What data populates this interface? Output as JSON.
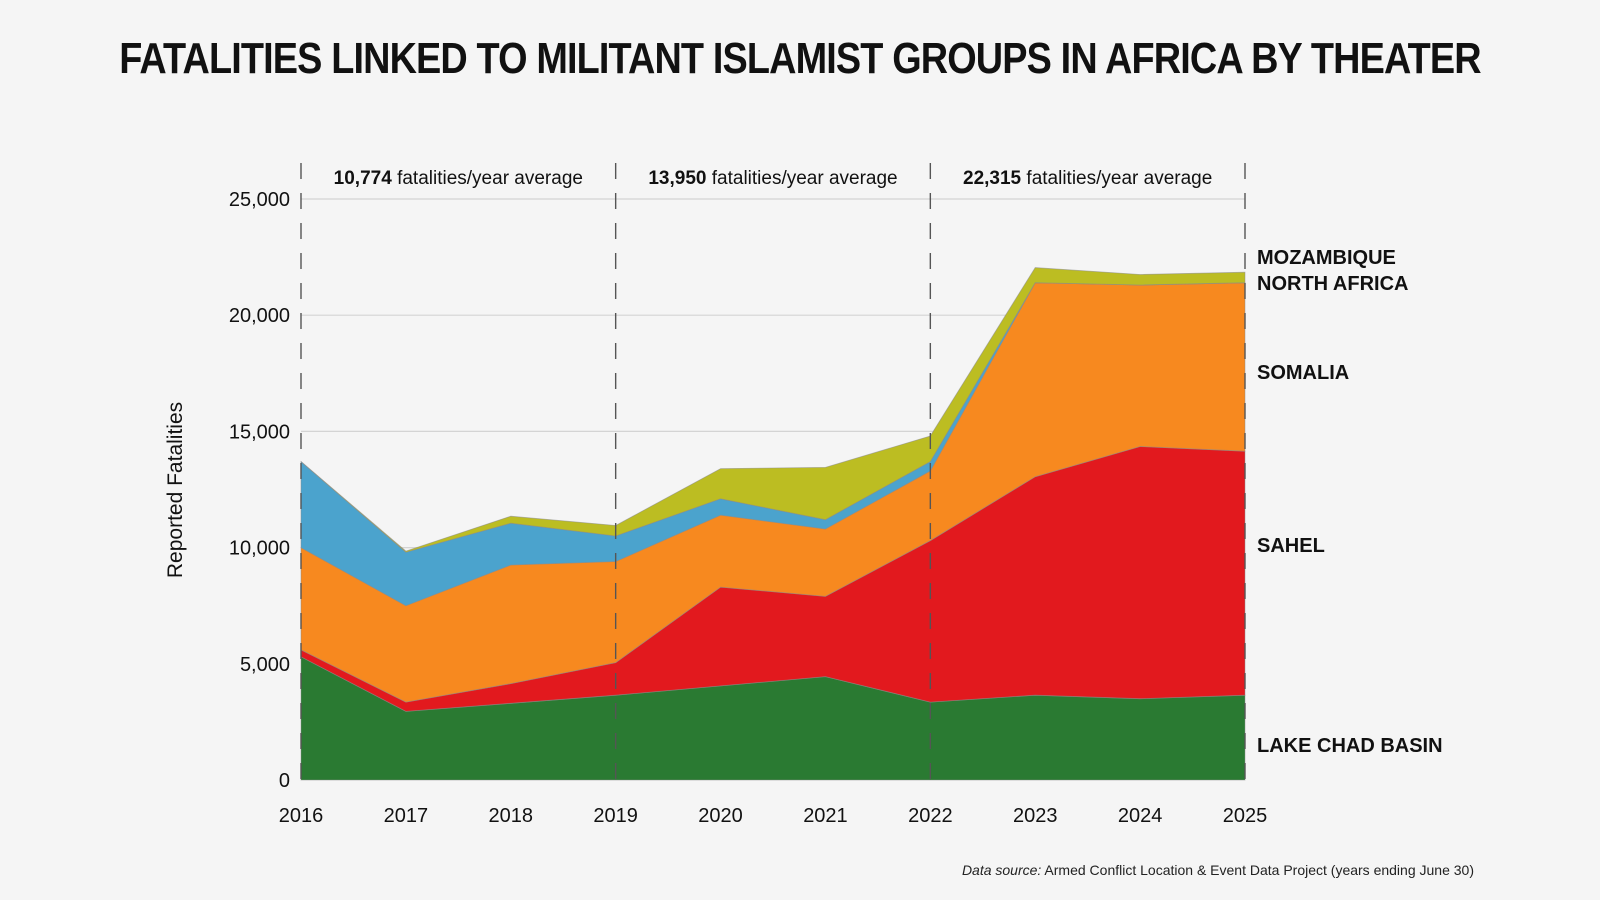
{
  "chart_data": {
    "type": "area",
    "title": "FATALITIES LINKED TO MILITANT ISLAMIST GROUPS IN AFRICA BY THEATER",
    "xlabel": "",
    "ylabel": "Reported Fatalities",
    "x": [
      "2016",
      "2017",
      "2018",
      "2019",
      "2020",
      "2021",
      "2022",
      "2023",
      "2024",
      "2025"
    ],
    "ylim": [
      0,
      25000
    ],
    "yticks": [
      0,
      5000,
      10000,
      15000,
      20000,
      25000
    ],
    "ytick_labels": [
      "0",
      "5,000",
      "10,000",
      "15,000",
      "20,000",
      "25,000"
    ],
    "stacked": true,
    "series": [
      {
        "name": "LAKE CHAD BASIN",
        "color": "#2a7a32",
        "values": [
          5300,
          2950,
          3300,
          3650,
          4050,
          4450,
          3350,
          3650,
          3500,
          3650
        ]
      },
      {
        "name": "SAHEL",
        "color": "#e2191e",
        "values": [
          300,
          400,
          850,
          1400,
          4250,
          3450,
          6950,
          9400,
          10850,
          10500
        ]
      },
      {
        "name": "SOMALIA",
        "color": "#f7891f",
        "values": [
          4400,
          4150,
          5100,
          4350,
          3100,
          2900,
          3000,
          8350,
          6950,
          7250
        ]
      },
      {
        "name": "NORTH AFRICA",
        "color": "#4ba3cd",
        "values": [
          3700,
          2300,
          1800,
          1100,
          700,
          400,
          400,
          0,
          0,
          0
        ]
      },
      {
        "name": "MOZAMBIQUE",
        "color": "#bcbd22",
        "values": [
          0,
          50,
          300,
          450,
          1300,
          2250,
          1100,
          650,
          450,
          450
        ]
      }
    ],
    "period_annotations": [
      {
        "value": "10,774",
        "text": " fatalities/year average"
      },
      {
        "value": "13,950",
        "text": " fatalities/year average"
      },
      {
        "value": "22,315",
        "text": " fatalities/year average"
      }
    ],
    "period_boundaries": [
      "2016",
      "2019",
      "2022",
      "2025"
    ],
    "grid": true
  },
  "source": {
    "label": "Data source:",
    "text": " Armed Conflict Location & Event Data Project (years ending June 30)"
  }
}
